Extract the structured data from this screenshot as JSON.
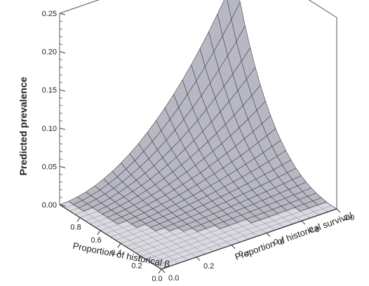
{
  "chart_data": {
    "type": "surface3d",
    "title": "",
    "zlabel": "Predicted prevalence",
    "xlabel": "Proportion of historical β",
    "ylabel": "Proportion of historical survival",
    "zlim": [
      0,
      0.25
    ],
    "z_ticks": [
      "0.25",
      "0.20",
      "0.15",
      "0.10",
      "0.05",
      "0.00"
    ],
    "x_ticks": [
      "0.8",
      "0.6",
      "0.4",
      "0.2",
      "0.0"
    ],
    "y_ticks": [
      "0.0",
      "0.2",
      "0.4",
      "0.6",
      "0.8",
      "1.0"
    ],
    "x_values": [
      0,
      0.05,
      0.1,
      0.15,
      0.2,
      0.25,
      0.3,
      0.35,
      0.4,
      0.45,
      0.5,
      0.55,
      0.6,
      0.65,
      0.7,
      0.75,
      0.8,
      0.85,
      0.9,
      0.95,
      1.0
    ],
    "y_values": [
      0,
      0.05,
      0.1,
      0.15,
      0.2,
      0.25,
      0.3,
      0.35,
      0.4,
      0.45,
      0.5,
      0.55,
      0.6,
      0.65,
      0.7,
      0.75,
      0.8,
      0.85,
      0.9,
      0.95,
      1.0
    ],
    "peak": {
      "x": 1.0,
      "y": 1.0,
      "z": 0.22
    },
    "surface_color": "#b8b8c4",
    "edge_color": "#444444",
    "grid": true
  }
}
